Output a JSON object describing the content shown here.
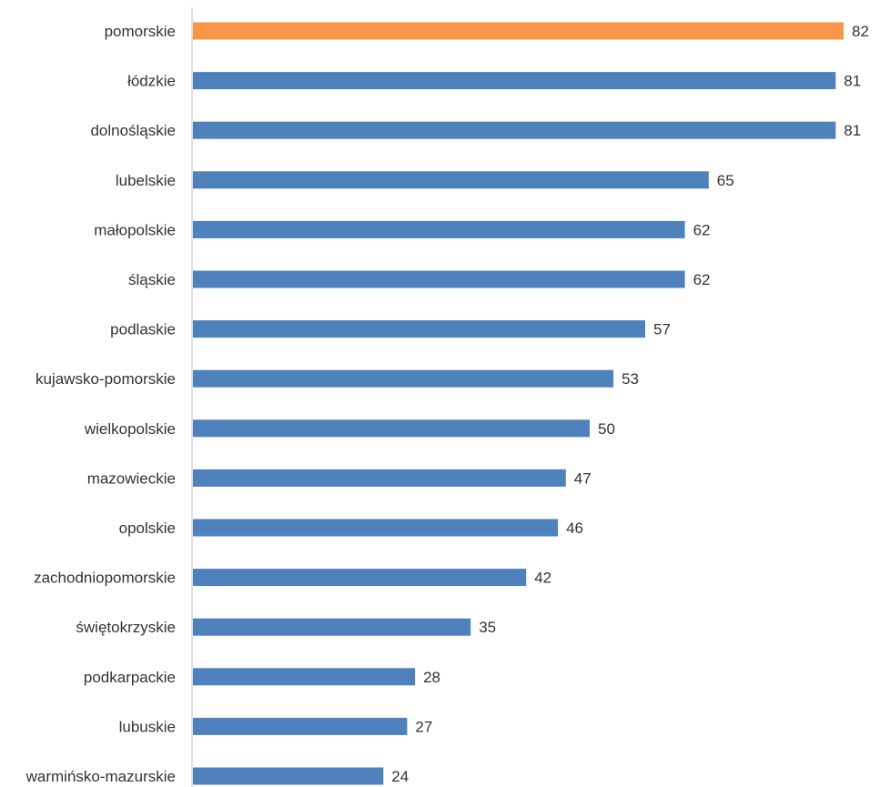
{
  "chart_data": {
    "type": "bar",
    "orientation": "horizontal",
    "categories": [
      "pomorskie",
      "łódzkie",
      "dolnośląskie",
      "lubelskie",
      "małopolskie",
      "śląskie",
      "podlaskie",
      "kujawsko-pomorskie",
      "wielkopolskie",
      "mazowieckie",
      "opolskie",
      "zachodniopomorskie",
      "świętokrzyskie",
      "podkarpackie",
      "lubuskie",
      "warmińsko-mazurskie"
    ],
    "values": [
      82,
      81,
      81,
      65,
      62,
      62,
      57,
      53,
      50,
      47,
      46,
      42,
      35,
      28,
      27,
      24
    ],
    "highlight_index": 0,
    "colors": {
      "bar": "#4f81bd",
      "highlight": "#f79646",
      "axis": "#bfbfbf",
      "text": "#333333"
    },
    "xlim": [
      0,
      82
    ],
    "grid": false,
    "legend": "none",
    "data_labels": true
  }
}
